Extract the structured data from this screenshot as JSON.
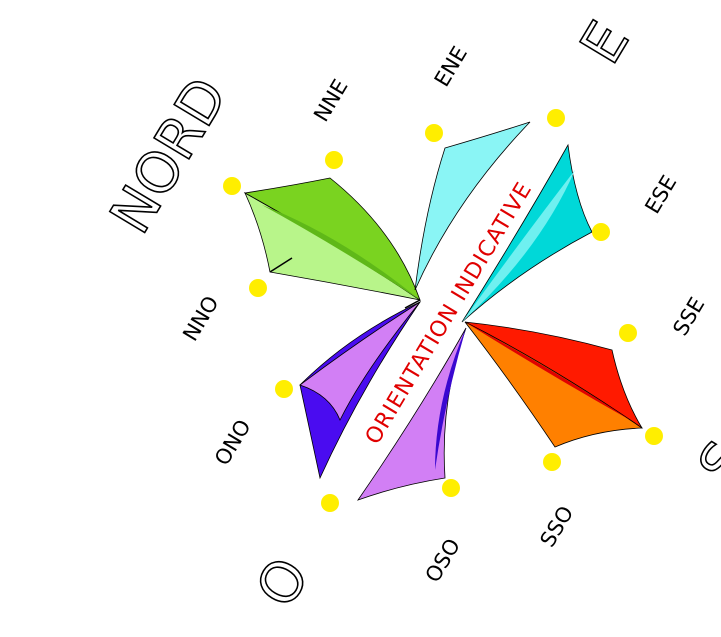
{
  "compass": {
    "cardinals": {
      "north": "NORD",
      "east": "E",
      "south": "S",
      "west": "O"
    },
    "intercardinals": [
      "NNE",
      "ENE",
      "ESE",
      "SSE",
      "SSO",
      "OSO",
      "ONO",
      "NNO"
    ],
    "band_label": "ORIENTATION INDICATIVE"
  }
}
